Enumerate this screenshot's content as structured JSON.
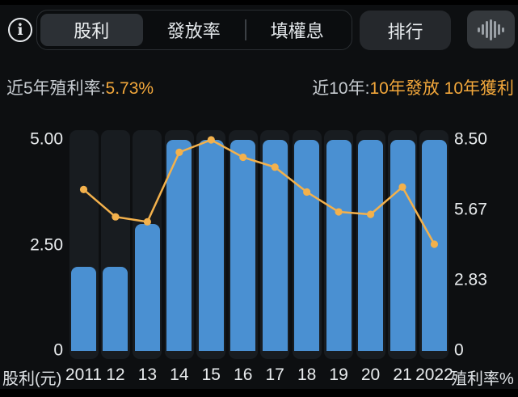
{
  "colors": {
    "bar": "#4a90d2",
    "line": "#f3b14c",
    "accent": "#f2a73b",
    "track": "#181c20"
  },
  "header": {
    "info_icon": "i",
    "tabs": [
      {
        "label": "股利",
        "selected": true
      },
      {
        "label": "發放率",
        "selected": false
      },
      {
        "label": "填權息",
        "selected": false
      }
    ],
    "rank_button_label": "排行",
    "voice_icon": "waveform-icon"
  },
  "stats": {
    "left_label": "近5年殖利率:",
    "left_value": "5.73%",
    "right_label": "近10年:",
    "right_value_1": "10年發放",
    "right_value_2": "10年獲利"
  },
  "chart_data": {
    "type": "bar",
    "categories": [
      "2011",
      "12",
      "13",
      "14",
      "15",
      "16",
      "17",
      "18",
      "19",
      "20",
      "21",
      "2022"
    ],
    "series": [
      {
        "name": "股利(元)",
        "type": "bar",
        "axis": "left",
        "values": [
          2.0,
          2.0,
          3.0,
          5.0,
          5.0,
          5.0,
          5.0,
          5.0,
          5.0,
          5.0,
          5.0,
          5.0
        ]
      },
      {
        "name": "殖利率%",
        "type": "line",
        "axis": "right",
        "values": [
          6.5,
          5.4,
          5.2,
          8.0,
          8.5,
          7.8,
          7.4,
          6.4,
          5.6,
          5.5,
          6.6,
          4.3
        ]
      }
    ],
    "left_axis": {
      "title": "股利(元)",
      "ticks": [
        "0",
        "2.50",
        "5.00"
      ],
      "tick_values": [
        0,
        2.5,
        5.0
      ],
      "max": 5.0
    },
    "right_axis": {
      "title": "殖利率%",
      "ticks": [
        "0",
        "2.83",
        "5.67",
        "8.50"
      ],
      "tick_values": [
        0,
        2.83,
        5.67,
        8.5
      ],
      "max": 8.5
    },
    "grid": false,
    "legend": false
  }
}
